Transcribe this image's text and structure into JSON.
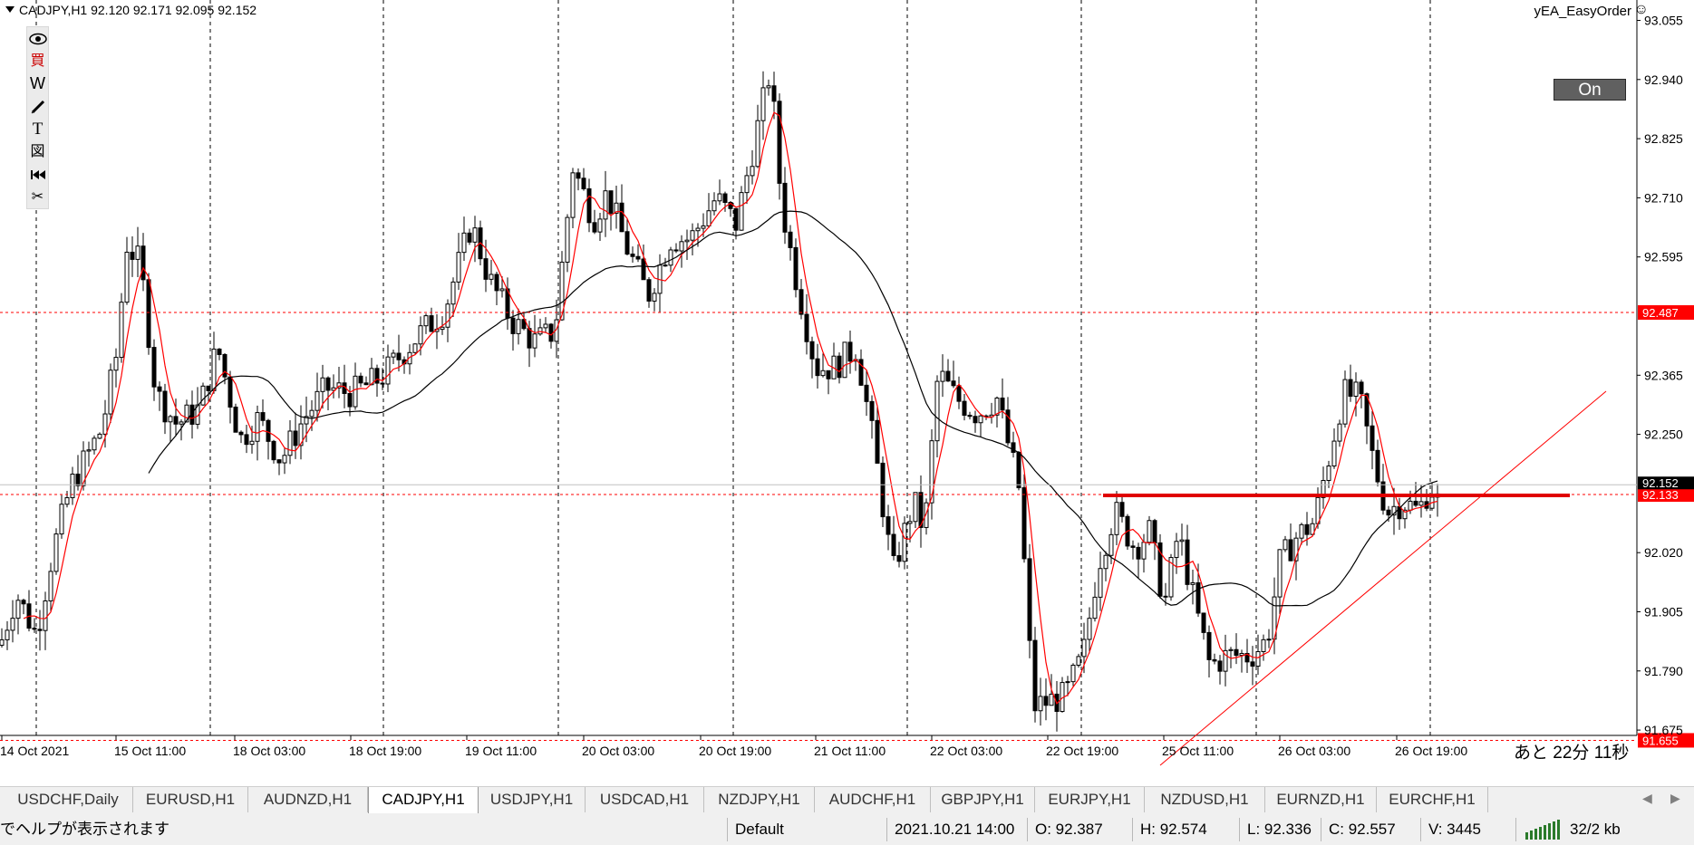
{
  "chart": {
    "symbol_line": "CADJPY,H1  92.120 92.171 92.095 92.152",
    "ea_name": "yEA_EasyOrder",
    "on_button": "On",
    "countdown": "あと 22分 11秒",
    "price_labels": [
      "93.055",
      "92.940",
      "92.825",
      "92.710",
      "92.595",
      "92.365",
      "92.250",
      "92.020",
      "91.905",
      "91.790",
      "91.675"
    ],
    "hline_labels": [
      {
        "text": "92.487",
        "price": 92.487
      },
      {
        "text": "92.133",
        "price": 92.133
      },
      {
        "text": "91.655",
        "price": 91.655
      }
    ],
    "bid_label": {
      "text": "92.152",
      "price": 92.152
    },
    "time_labels": [
      "14 Oct 2021",
      "15 Oct 11:00",
      "18 Oct 03:00",
      "18 Oct 19:00",
      "19 Oct 11:00",
      "20 Oct 03:00",
      "20 Oct 19:00",
      "21 Oct 11:00",
      "22 Oct 03:00",
      "22 Oct 19:00",
      "25 Oct 11:00",
      "26 Oct 03:00",
      "26 Oct 19:00"
    ],
    "colors": {
      "up": "#ffffff",
      "down": "#000000",
      "ma_fast": "#ff0000",
      "ma_slow": "#000000",
      "hline": "#ff0000",
      "label_bg": "#ff0000",
      "bid_bg": "#000000"
    }
  },
  "toolbar": [
    "eye-icon",
    "buy-icon",
    "w-icon",
    "pencil-icon",
    "text-icon",
    "object-icon",
    "rewind-icon",
    "scissors-icon"
  ],
  "toolbar_text": {
    "buy": "買",
    "w": "W",
    "text": "T",
    "obj": "図"
  },
  "tabs": [
    "USDCHF,Daily",
    "EURUSD,H1",
    "AUDNZD,H1",
    "CADJPY,H1",
    "USDJPY,H1",
    "USDCAD,H1",
    "NZDJPY,H1",
    "AUDCHF,H1",
    "GBPJPY,H1",
    "EURJPY,H1",
    "NZDUSD,H1",
    "EURNZD,H1",
    "EURCHF,H1"
  ],
  "active_tab": "CADJPY,H1",
  "status": {
    "help": "でヘルプが表示されます",
    "profile": "Default",
    "datetime": "2021.10.21 14:00",
    "open": "O: 92.387",
    "high": "H: 92.574",
    "low": "L: 92.336",
    "close": "C: 92.557",
    "volume": "V: 3445",
    "traffic": "32/2 kb"
  }
}
